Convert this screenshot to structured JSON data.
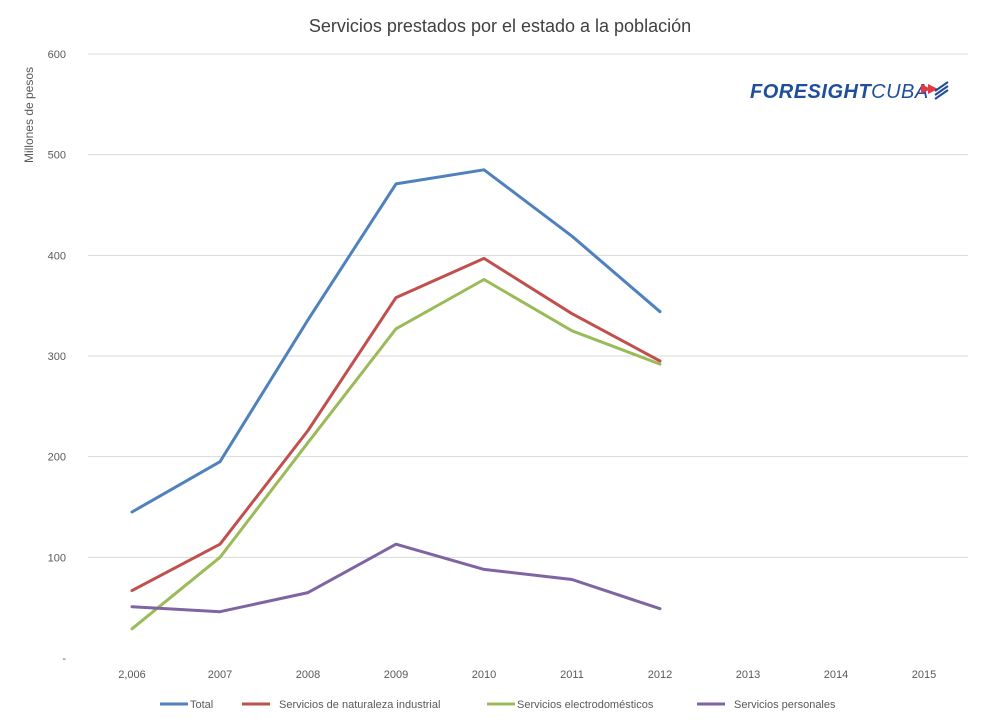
{
  "chart_data": {
    "type": "line",
    "title": "Servicios prestados por el estado a la población",
    "ylabel": "Millones de pesos",
    "xlabel": "",
    "categories": [
      "2,006",
      "2007",
      "2008",
      "2009",
      "2010",
      "2011",
      "2012",
      "2013",
      "2014",
      "2015"
    ],
    "yticks": [
      "-",
      "100",
      "200",
      "300",
      "400",
      "500",
      "600"
    ],
    "ylim": [
      0,
      600
    ],
    "grid": true,
    "legend_position": "bottom",
    "series": [
      {
        "name": "Total",
        "color": "#4f81bd",
        "values": [
          145,
          195,
          336,
          471,
          485,
          419,
          344,
          null,
          null,
          null
        ]
      },
      {
        "name": "Servicios de naturaleza industrial",
        "color": "#c0504d",
        "values": [
          67,
          113,
          226,
          358,
          397,
          342,
          295,
          null,
          null,
          null
        ]
      },
      {
        "name": "Servicios electrodomésticos",
        "color": "#9bbb59",
        "values": [
          29,
          100,
          214,
          327,
          376,
          325,
          292,
          null,
          null,
          null
        ]
      },
      {
        "name": "Servicios personales",
        "color": "#8064a2",
        "values": [
          51,
          46,
          65,
          113,
          88,
          78,
          49,
          null,
          null,
          null
        ]
      }
    ]
  },
  "logo": {
    "text_part1": "FORESIGHT",
    "text_part2": "CUBA",
    "primary_color": "#1f4e9c",
    "accent_color": "#e03a3e"
  }
}
